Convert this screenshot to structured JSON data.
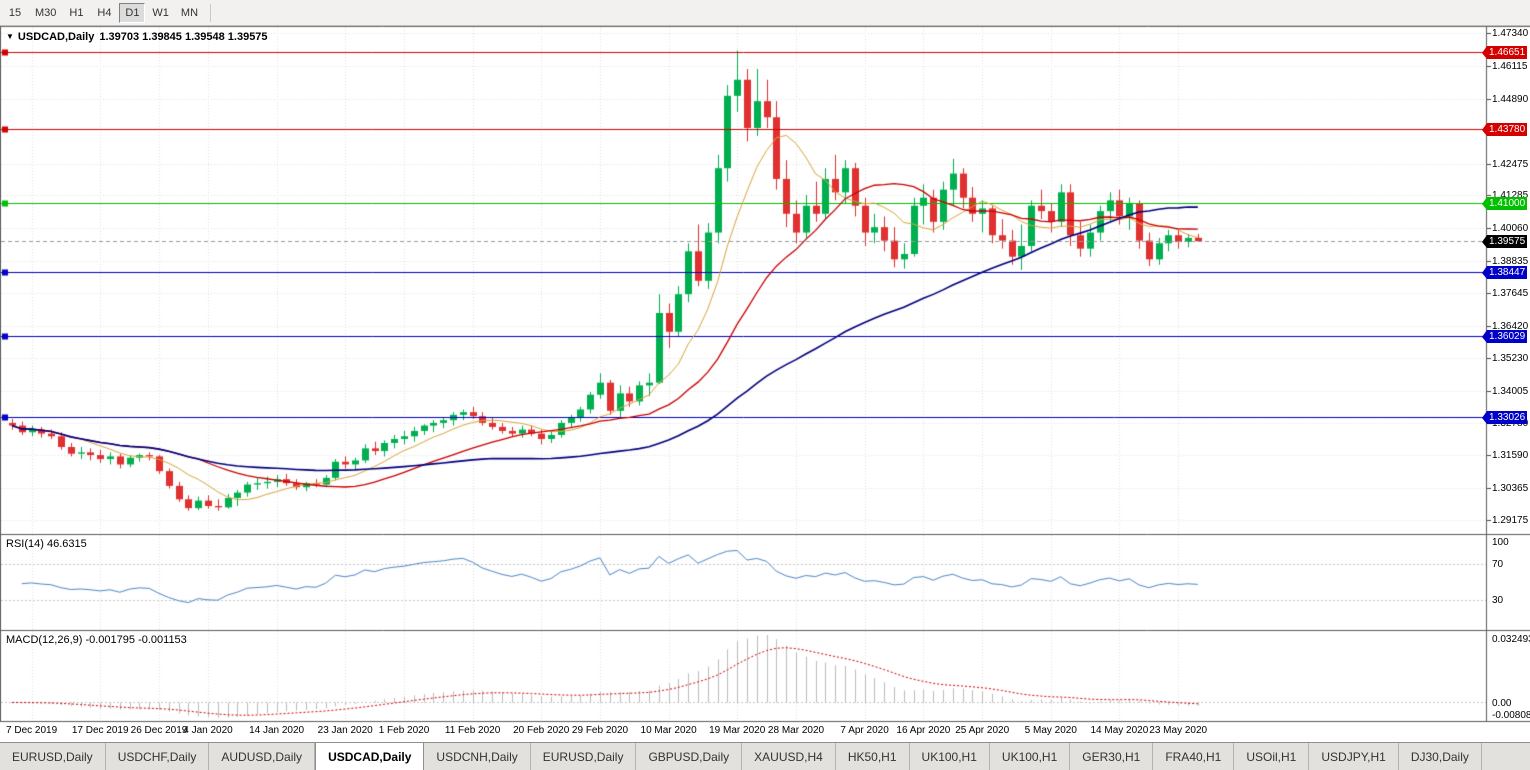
{
  "toolbar": {
    "timeframes": [
      "15",
      "M30",
      "H1",
      "H4",
      "D1",
      "W1",
      "MN"
    ],
    "active": "D1"
  },
  "chart": {
    "title": "USDCAD,Daily",
    "ohlc": "1.39703 1.39845 1.39548 1.39575"
  },
  "chart_data": {
    "type": "candlestick",
    "symbol": "USDCAD",
    "period": "Daily",
    "y_range": {
      "min": 1.2873,
      "max": 1.4753
    },
    "y_axis_labels": [
      "1.47340",
      "1.46115",
      "1.44890",
      "1.42475",
      "1.41285",
      "1.40060",
      "1.38835",
      "1.37645",
      "1.36420",
      "1.35230",
      "1.34005",
      "1.32780",
      "1.31590",
      "1.30365",
      "1.29175"
    ],
    "x_labels": [
      {
        "text": "7 Dec 2019",
        "i": 2
      },
      {
        "text": "17 Dec 2019",
        "i": 9
      },
      {
        "text": "26 Dec 2019",
        "i": 15
      },
      {
        "text": "4 Jan 2020",
        "i": 20
      },
      {
        "text": "14 Jan 2020",
        "i": 27
      },
      {
        "text": "23 Jan 2020",
        "i": 34
      },
      {
        "text": "1 Feb 2020",
        "i": 40
      },
      {
        "text": "11 Feb 2020",
        "i": 47
      },
      {
        "text": "20 Feb 2020",
        "i": 54
      },
      {
        "text": "29 Feb 2020",
        "i": 60
      },
      {
        "text": "10 Mar 2020",
        "i": 67
      },
      {
        "text": "19 Mar 2020",
        "i": 74
      },
      {
        "text": "28 Mar 2020",
        "i": 80
      },
      {
        "text": "7 Apr 2020",
        "i": 87
      },
      {
        "text": "16 Apr 2020",
        "i": 93
      },
      {
        "text": "25 Apr 2020",
        "i": 99
      },
      {
        "text": "5 May 2020",
        "i": 106
      },
      {
        "text": "14 May 2020",
        "i": 113
      },
      {
        "text": "23 May 2020",
        "i": 119
      }
    ],
    "candles": [
      [
        1.328,
        1.3295,
        1.3255,
        1.327
      ],
      [
        1.327,
        1.3285,
        1.3235,
        1.3245
      ],
      [
        1.3245,
        1.327,
        1.323,
        1.3255
      ],
      [
        1.3255,
        1.3265,
        1.3225,
        1.324
      ],
      [
        1.324,
        1.3255,
        1.322,
        1.323
      ],
      [
        1.323,
        1.3245,
        1.318,
        1.319
      ],
      [
        1.319,
        1.3205,
        1.3155,
        1.3165
      ],
      [
        1.3165,
        1.319,
        1.3145,
        1.317
      ],
      [
        1.317,
        1.3185,
        1.314,
        1.316
      ],
      [
        1.316,
        1.318,
        1.313,
        1.3145
      ],
      [
        1.3145,
        1.317,
        1.3125,
        1.3155
      ],
      [
        1.3155,
        1.3165,
        1.311,
        1.3125
      ],
      [
        1.3125,
        1.316,
        1.3115,
        1.315
      ],
      [
        1.315,
        1.3165,
        1.3135,
        1.316
      ],
      [
        1.316,
        1.317,
        1.314,
        1.3155
      ],
      [
        1.3155,
        1.316,
        1.309,
        1.31
      ],
      [
        1.31,
        1.311,
        1.3035,
        1.3045
      ],
      [
        1.3045,
        1.306,
        1.2985,
        1.2995
      ],
      [
        1.2995,
        1.301,
        1.2952,
        1.2962
      ],
      [
        1.2962,
        1.3005,
        1.2955,
        1.299
      ],
      [
        1.299,
        1.301,
        1.296,
        1.297
      ],
      [
        1.297,
        1.2995,
        1.2952,
        1.2965
      ],
      [
        1.2965,
        1.3015,
        1.296,
        1.3
      ],
      [
        1.3,
        1.303,
        1.297,
        1.302
      ],
      [
        1.302,
        1.306,
        1.3005,
        1.305
      ],
      [
        1.305,
        1.3075,
        1.303,
        1.3055
      ],
      [
        1.3055,
        1.308,
        1.3035,
        1.306
      ],
      [
        1.306,
        1.3085,
        1.304,
        1.307
      ],
      [
        1.307,
        1.309,
        1.3045,
        1.3055
      ],
      [
        1.3055,
        1.307,
        1.303,
        1.304
      ],
      [
        1.304,
        1.306,
        1.3025,
        1.3055
      ],
      [
        1.3055,
        1.307,
        1.304,
        1.305
      ],
      [
        1.305,
        1.3085,
        1.304,
        1.3075
      ],
      [
        1.3075,
        1.3145,
        1.3065,
        1.3135
      ],
      [
        1.3135,
        1.3155,
        1.311,
        1.3125
      ],
      [
        1.3125,
        1.315,
        1.3105,
        1.314
      ],
      [
        1.314,
        1.32,
        1.313,
        1.3185
      ],
      [
        1.3185,
        1.321,
        1.316,
        1.3175
      ],
      [
        1.3175,
        1.3215,
        1.3155,
        1.3205
      ],
      [
        1.3205,
        1.3235,
        1.3185,
        1.322
      ],
      [
        1.322,
        1.325,
        1.32,
        1.323
      ],
      [
        1.323,
        1.3265,
        1.321,
        1.325
      ],
      [
        1.325,
        1.3275,
        1.3235,
        1.327
      ],
      [
        1.327,
        1.329,
        1.3245,
        1.328
      ],
      [
        1.328,
        1.33,
        1.326,
        1.329
      ],
      [
        1.329,
        1.332,
        1.327,
        1.331
      ],
      [
        1.331,
        1.333,
        1.329,
        1.332
      ],
      [
        1.332,
        1.334,
        1.3295,
        1.3305
      ],
      [
        1.3305,
        1.332,
        1.327,
        1.328
      ],
      [
        1.328,
        1.33,
        1.3255,
        1.3265
      ],
      [
        1.3265,
        1.328,
        1.324,
        1.325
      ],
      [
        1.325,
        1.3265,
        1.323,
        1.324
      ],
      [
        1.324,
        1.327,
        1.3225,
        1.3255
      ],
      [
        1.3255,
        1.327,
        1.323,
        1.324
      ],
      [
        1.324,
        1.3255,
        1.32,
        1.322
      ],
      [
        1.322,
        1.325,
        1.3205,
        1.3235
      ],
      [
        1.3235,
        1.329,
        1.3225,
        1.328
      ],
      [
        1.328,
        1.331,
        1.326,
        1.33
      ],
      [
        1.33,
        1.334,
        1.3285,
        1.333
      ],
      [
        1.333,
        1.3395,
        1.3315,
        1.3385
      ],
      [
        1.3385,
        1.3465,
        1.337,
        1.343
      ],
      [
        1.343,
        1.344,
        1.331,
        1.3325
      ],
      [
        1.3325,
        1.342,
        1.33,
        1.339
      ],
      [
        1.339,
        1.3415,
        1.334,
        1.336
      ],
      [
        1.336,
        1.3435,
        1.3345,
        1.342
      ],
      [
        1.342,
        1.3465,
        1.338,
        1.343
      ],
      [
        1.343,
        1.376,
        1.3425,
        1.369
      ],
      [
        1.369,
        1.3725,
        1.356,
        1.362
      ],
      [
        1.362,
        1.379,
        1.36,
        1.376
      ],
      [
        1.376,
        1.395,
        1.373,
        1.392
      ],
      [
        1.392,
        1.402,
        1.379,
        1.381
      ],
      [
        1.381,
        1.4025,
        1.378,
        1.399
      ],
      [
        1.399,
        1.428,
        1.395,
        1.423
      ],
      [
        1.423,
        1.454,
        1.418,
        1.45
      ],
      [
        1.45,
        1.4669,
        1.444,
        1.456
      ],
      [
        1.456,
        1.46,
        1.433,
        1.438
      ],
      [
        1.438,
        1.46,
        1.435,
        1.448
      ],
      [
        1.448,
        1.456,
        1.438,
        1.442
      ],
      [
        1.442,
        1.448,
        1.415,
        1.419
      ],
      [
        1.419,
        1.426,
        1.401,
        1.406
      ],
      [
        1.406,
        1.411,
        1.395,
        1.399
      ],
      [
        1.399,
        1.413,
        1.397,
        1.409
      ],
      [
        1.409,
        1.418,
        1.403,
        1.406
      ],
      [
        1.406,
        1.423,
        1.404,
        1.419
      ],
      [
        1.419,
        1.428,
        1.411,
        1.414
      ],
      [
        1.414,
        1.426,
        1.41,
        1.423
      ],
      [
        1.423,
        1.425,
        1.405,
        1.409
      ],
      [
        1.409,
        1.412,
        1.394,
        1.399
      ],
      [
        1.399,
        1.406,
        1.395,
        1.401
      ],
      [
        1.401,
        1.405,
        1.392,
        1.396
      ],
      [
        1.396,
        1.401,
        1.386,
        1.389
      ],
      [
        1.389,
        1.395,
        1.3855,
        1.391
      ],
      [
        1.391,
        1.412,
        1.39,
        1.409
      ],
      [
        1.409,
        1.417,
        1.402,
        1.412
      ],
      [
        1.412,
        1.415,
        1.399,
        1.403
      ],
      [
        1.403,
        1.418,
        1.4,
        1.415
      ],
      [
        1.415,
        1.4265,
        1.409,
        1.421
      ],
      [
        1.421,
        1.423,
        1.408,
        1.412
      ],
      [
        1.412,
        1.416,
        1.403,
        1.406
      ],
      [
        1.406,
        1.411,
        1.399,
        1.408
      ],
      [
        1.408,
        1.409,
        1.395,
        1.398
      ],
      [
        1.398,
        1.404,
        1.393,
        1.396
      ],
      [
        1.396,
        1.4,
        1.387,
        1.39
      ],
      [
        1.39,
        1.402,
        1.385,
        1.394
      ],
      [
        1.394,
        1.411,
        1.392,
        1.409
      ],
      [
        1.409,
        1.415,
        1.404,
        1.407
      ],
      [
        1.407,
        1.41,
        1.399,
        1.403
      ],
      [
        1.403,
        1.417,
        1.401,
        1.414
      ],
      [
        1.414,
        1.417,
        1.394,
        1.398
      ],
      [
        1.398,
        1.403,
        1.39,
        1.393
      ],
      [
        1.393,
        1.402,
        1.39,
        1.399
      ],
      [
        1.399,
        1.409,
        1.396,
        1.407
      ],
      [
        1.407,
        1.414,
        1.403,
        1.411
      ],
      [
        1.411,
        1.415,
        1.402,
        1.405
      ],
      [
        1.405,
        1.412,
        1.4,
        1.41
      ],
      [
        1.41,
        1.411,
        1.393,
        1.396
      ],
      [
        1.396,
        1.399,
        1.3865,
        1.389
      ],
      [
        1.389,
        1.397,
        1.387,
        1.395
      ],
      [
        1.395,
        1.4,
        1.392,
        1.398
      ],
      [
        1.398,
        1.4,
        1.393,
        1.3955
      ],
      [
        1.3955,
        1.3985,
        1.3935,
        1.397
      ],
      [
        1.39703,
        1.39845,
        1.39548,
        1.39575
      ]
    ],
    "horizontal_lines": [
      {
        "price": 1.46651,
        "label": "1.46651",
        "color": "#D40000"
      },
      {
        "price": 1.4378,
        "label": "1.43780",
        "color": "#D40000"
      },
      {
        "price": 1.41,
        "label": "1.41000",
        "color": "#00C000"
      },
      {
        "price": 1.38447,
        "label": "1.38447",
        "color": "#0000C8"
      },
      {
        "price": 1.36029,
        "label": "1.36029",
        "color": "#0000C8"
      },
      {
        "price": 1.33026,
        "label": "1.33026",
        "color": "#0000C8"
      }
    ],
    "current_price": {
      "value": 1.39575,
      "label": "1.39575",
      "color": "#000000"
    },
    "moving_averages": [
      {
        "name": "fast-ma",
        "period": 8,
        "color": "#D9A53C"
      },
      {
        "name": "mid-ma",
        "period": 20,
        "color": "#C80000"
      },
      {
        "name": "slow-ma",
        "period": 50,
        "color": "#00007B"
      }
    ],
    "rsi": {
      "label": "RSI(14) 46.6315",
      "period": 14,
      "value": 46.6315,
      "axis_labels": [
        {
          "text": "100",
          "v": 100
        },
        {
          "text": "70",
          "v": 70
        },
        {
          "text": "30",
          "v": 30
        }
      ],
      "levels": [
        70,
        30
      ],
      "color": "#4E86C6"
    },
    "macd": {
      "label": "MACD(12,26,9) -0.001795 -0.001153",
      "fast": 12,
      "slow": 26,
      "signal": 9,
      "values": [
        -0.001795,
        -0.001153
      ],
      "axis_top": "0.032493",
      "axis_zero": "0.00",
      "axis_bottom": "-0.00808",
      "histogram_color": "#BBBBBB",
      "signal_color": "#D40000"
    },
    "colors": {
      "candle_up": "#00B050",
      "candle_down": "#E03030",
      "grid": "#E4E4E4",
      "background": "#FFFFFF"
    }
  },
  "tabbar": {
    "tabs": [
      "EURUSD,Daily",
      "USDCHF,Daily",
      "AUDUSD,Daily",
      "USDCAD,Daily",
      "USDCNH,Daily",
      "EURUSD,Daily",
      "GBPUSD,Daily",
      "XAUUSD,H4",
      "HK50,H1",
      "UK100,H1",
      "UK100,H1",
      "GER30,H1",
      "FRA40,H1",
      "USOil,H1",
      "USDJPY,H1",
      "DJ30,Daily"
    ],
    "active_index": 3
  }
}
